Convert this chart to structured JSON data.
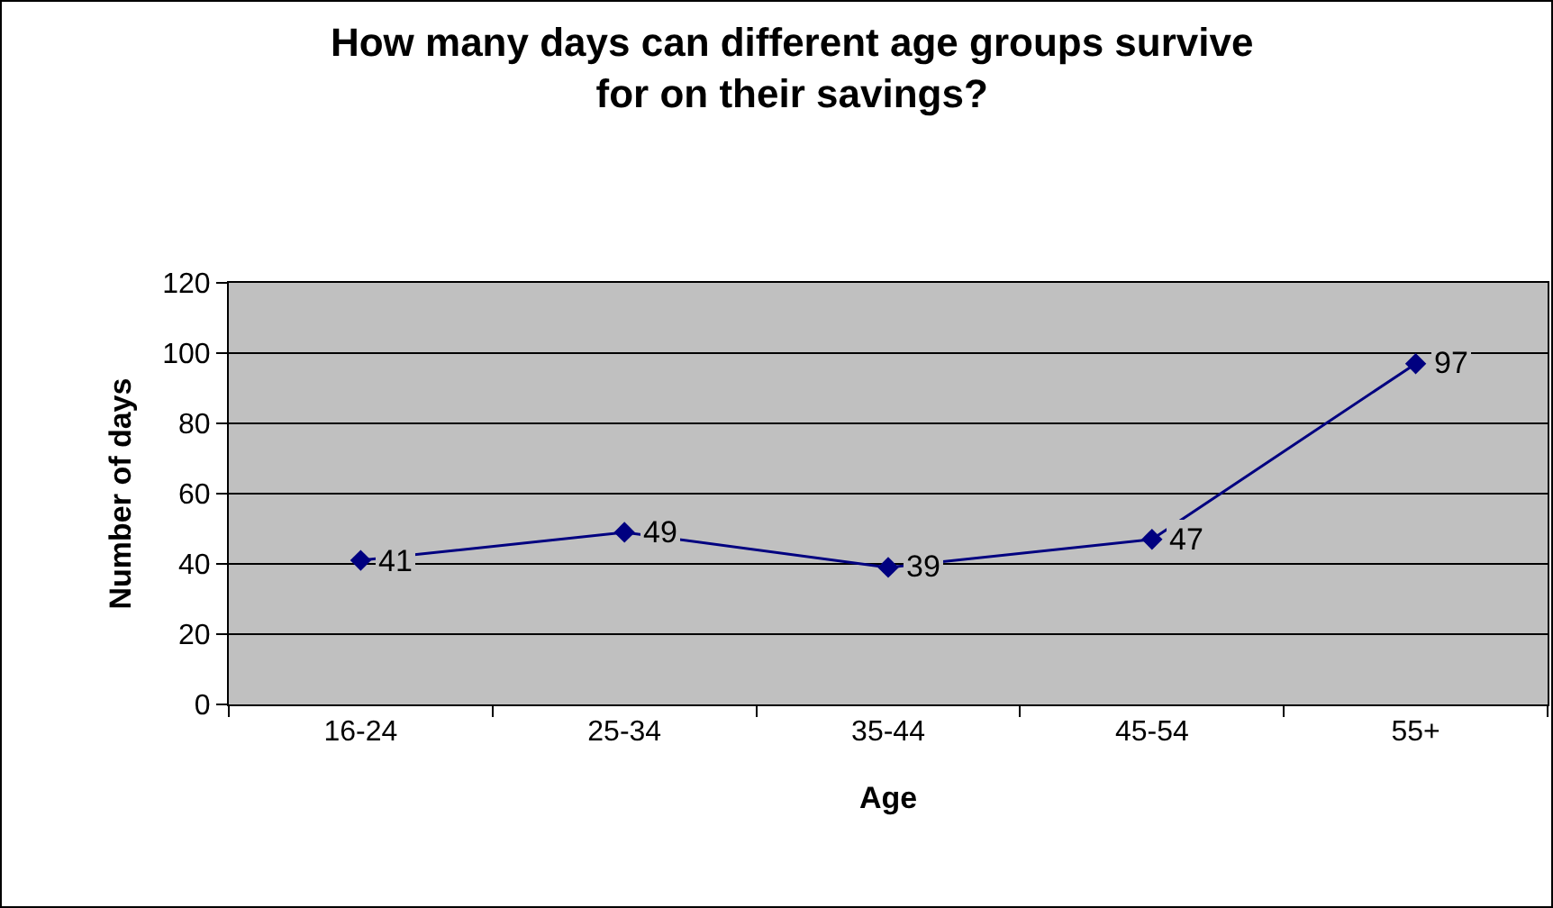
{
  "chart_data": {
    "type": "line",
    "title": "How many days can different age groups survive for on their savings?",
    "xlabel": "Age",
    "ylabel": "Number of days",
    "categories": [
      "16-24",
      "25-34",
      "35-44",
      "45-54",
      "55+"
    ],
    "series": [
      {
        "color": "#000080",
        "values": [
          41,
          49,
          39,
          47,
          97
        ]
      }
    ],
    "ylim": [
      0,
      120
    ],
    "yticks": [
      0,
      20,
      40,
      60,
      80,
      100,
      120
    ],
    "grid": "y",
    "legend": false,
    "marker": "diamond",
    "line_style": "solid",
    "data_labels": true
  }
}
